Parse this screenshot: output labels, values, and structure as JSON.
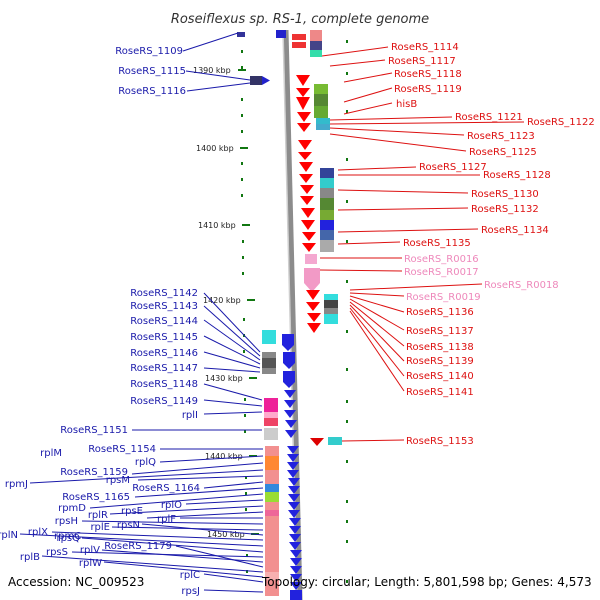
{
  "title": "Roseiflexus sp. RS-1, complete genome",
  "accession": "Accession: NC_009523",
  "topology": "Topology: circular; Length: 5,801,598 bp; Genes: 4,573",
  "colors": {
    "left_labels": "#1a1aaa",
    "right_labels": "#dd1111",
    "rna_labels": "#ee88bb",
    "backbone": "#8c8c8c",
    "ticks": "#117711"
  },
  "scale": {
    "ticks": [
      "1390 kbp",
      "1400 kbp",
      "1410 kbp",
      "1420 kbp",
      "1430 kbp",
      "1440 kbp",
      "1450 kbp"
    ]
  },
  "left_labels": [
    "RoseRS_1109",
    "RoseRS_1115",
    "RoseRS_1116",
    "RoseRS_1142",
    "RoseRS_1143",
    "RoseRS_1144",
    "RoseRS_1145",
    "RoseRS_1146",
    "RoseRS_1147",
    "RoseRS_1148",
    "RoseRS_1149",
    "rplI",
    "RoseRS_1151",
    "RoseRS_1154",
    "rplM",
    "rplQ",
    "RoseRS_1159",
    "rpmJ",
    "rpsM",
    "RoseRS_1164",
    "RoseRS_1165",
    "rpmD",
    "rplO",
    "rplR",
    "rpsE",
    "rplF",
    "rpsH",
    "rplE",
    "rpsN",
    "rplX",
    "rpmC",
    "rpsQ",
    "rplN",
    "rpsS",
    "rplV",
    "RoseRS_1179",
    "rplB",
    "rplW",
    "rplC",
    "rpsJ"
  ],
  "right_labels": [
    "RoseRS_1114",
    "RoseRS_1117",
    "RoseRS_1118",
    "RoseRS_1119",
    "hisB",
    "RoseRS_1121",
    "RoseRS_1122",
    "RoseRS_1123",
    "RoseRS_1125",
    "RoseRS_1127",
    "RoseRS_1128",
    "RoseRS_1130",
    "RoseRS_1132",
    "RoseRS_1134",
    "RoseRS_1135",
    "RoseRS_1136",
    "RoseRS_1137",
    "RoseRS_1138",
    "RoseRS_1139",
    "RoseRS_1140",
    "RoseRS_1141",
    "RoseRS_1153"
  ],
  "rna_labels": [
    "RoseRS_R0016",
    "RoseRS_R0017",
    "RoseRS_R0018",
    "RoseRS_R0019"
  ]
}
